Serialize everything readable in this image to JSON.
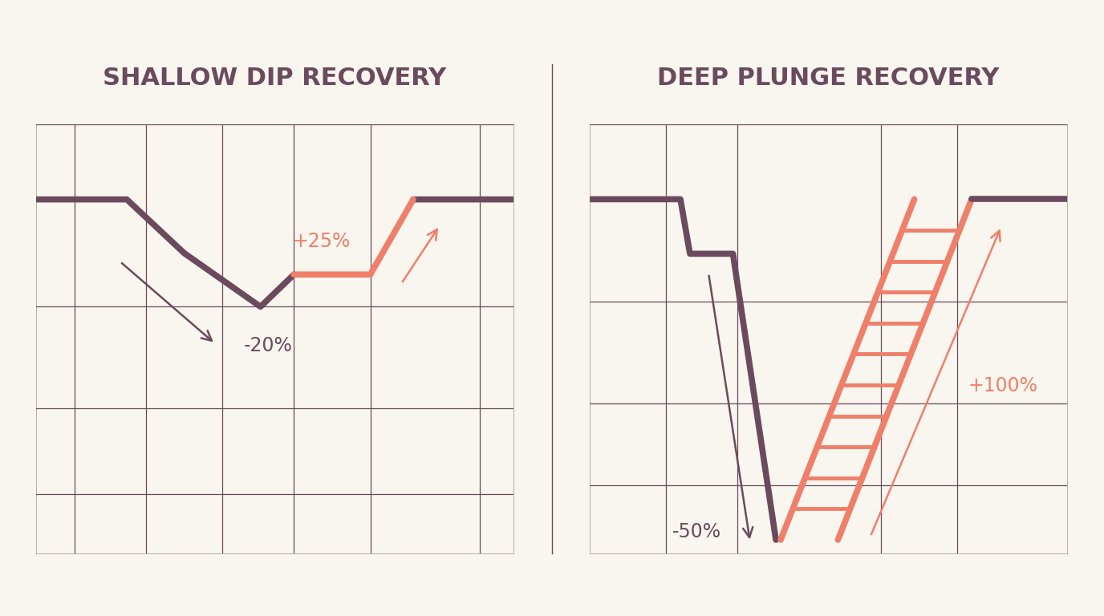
{
  "chart_data": [
    {
      "type": "line",
      "title": "SHALLOW DIP RECOVERY",
      "x": [
        0,
        19,
        31,
        47,
        54,
        70,
        79,
        100
      ],
      "series": [
        {
          "color": "#6b4a5e",
          "values": [
            100,
            100,
            90,
            80,
            86,
            null,
            100,
            100
          ]
        },
        {
          "color": "#ef7f6a",
          "values": [
            null,
            null,
            null,
            null,
            86,
            86,
            100,
            null
          ]
        }
      ],
      "xlim": [
        0,
        100
      ],
      "ylim": [
        34,
        114
      ],
      "xticks": [
        8,
        23,
        39,
        54,
        70,
        93
      ],
      "yticks": [
        45,
        61,
        80,
        114
      ],
      "grid": true,
      "tick_labels": false,
      "annotations": [
        {
          "text": "-20%",
          "color": "#6b4a5e"
        },
        {
          "text": "+25%",
          "color": "#ef7f6a"
        }
      ]
    },
    {
      "type": "line",
      "title": "DEEP PLUNGE RECOVERY",
      "x": [
        0,
        19,
        21,
        30,
        39,
        52,
        80,
        100
      ],
      "series": [
        {
          "color": "#6b4a5e",
          "values": [
            100,
            100,
            92,
            92,
            50,
            null,
            null,
            null
          ]
        },
        {
          "color": "#ef7f6a",
          "values": [
            null,
            null,
            null,
            null,
            null,
            50,
            100,
            null
          ]
        },
        {
          "color": "#6b4a5e",
          "values": [
            null,
            null,
            null,
            null,
            null,
            null,
            100,
            100
          ]
        }
      ],
      "xlim": [
        0,
        100
      ],
      "ylim": [
        48,
        111
      ],
      "xticks": [
        16,
        31,
        61,
        77
      ],
      "yticks": [
        58,
        70,
        85,
        111
      ],
      "grid": true,
      "tick_labels": false,
      "annotations": [
        {
          "text": "-50%",
          "color": "#6b4a5e"
        },
        {
          "text": "+100%",
          "color": "#ef7f6a"
        }
      ]
    }
  ]
}
